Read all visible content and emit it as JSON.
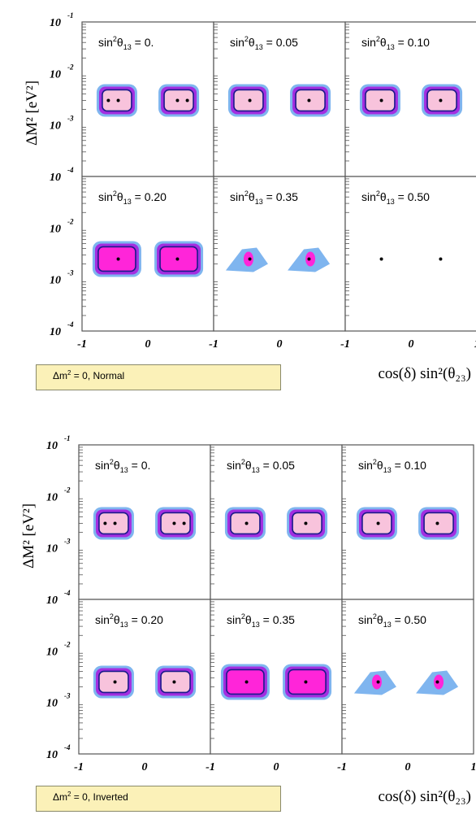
{
  "colors": {
    "frame": "#555555",
    "region_outer": "#7fb5ef",
    "region_mid": "#a32ee0",
    "region_core": "#ff25d9",
    "region_inner": "#f8c3dc",
    "contour": "#1a1a8a",
    "best_fit": "#000000",
    "legend_bg": "#fbf1b8"
  },
  "chart_data": [
    {
      "type": "contour",
      "legend": "Δm² = 0, Normal",
      "legend_parts": {
        "pre": "Δm",
        "sup": "2",
        "post": " = 0, Normal"
      },
      "xlabel": "cos(δ) sin²(θ₂₃)",
      "ylabel": "ΔM² [eV²]",
      "x_ticks": [
        "-1",
        "0",
        "-1",
        "0",
        "-1",
        "0",
        "1"
      ],
      "y_ticks": [
        "10",
        "10",
        "10",
        "10"
      ],
      "y_tick_exponents": [
        "-1",
        "-2",
        "-3",
        "-4"
      ],
      "x_range": [
        -1,
        1
      ],
      "y_range": [
        0.0001,
        0.1
      ],
      "y_scale": "log",
      "panels": [
        {
          "title_pre": "sin",
          "title_sup": "2",
          "title_mid": "θ",
          "title_sub": "13",
          "title_post": " = 0.",
          "sin2theta13": 0.0,
          "regions": "full",
          "best_fit_x": [
            -0.6,
            -0.45,
            0.45,
            0.6
          ],
          "best_fit_dm2": 0.003
        },
        {
          "title_pre": "sin",
          "title_sup": "2",
          "title_mid": "θ",
          "title_sub": "13",
          "title_post": " = 0.05",
          "sin2theta13": 0.05,
          "regions": "full",
          "best_fit_x": [
            -0.45,
            0.45
          ],
          "best_fit_dm2": 0.003
        },
        {
          "title_pre": "sin",
          "title_sup": "2",
          "title_mid": "θ",
          "title_sub": "13",
          "title_post": " = 0.10",
          "sin2theta13": 0.1,
          "regions": "full",
          "best_fit_x": [
            -0.45,
            0.45
          ],
          "best_fit_dm2": 0.003
        },
        {
          "title_pre": "sin",
          "title_sup": "2",
          "title_mid": "θ",
          "title_sub": "13",
          "title_post": " = 0.20",
          "sin2theta13": 0.2,
          "regions": "wide",
          "best_fit_x": [
            -0.45,
            0.45
          ],
          "best_fit_dm2": 0.0025
        },
        {
          "title_pre": "sin",
          "title_sup": "2",
          "title_mid": "θ",
          "title_sub": "13",
          "title_post": " = 0.35",
          "sin2theta13": 0.35,
          "regions": "narrow",
          "best_fit_x": [
            -0.45,
            0.45
          ],
          "best_fit_dm2": 0.0025
        },
        {
          "title_pre": "sin",
          "title_sup": "2",
          "title_mid": "θ",
          "title_sub": "13",
          "title_post": " = 0.50",
          "sin2theta13": 0.5,
          "regions": "none",
          "best_fit_x": [
            -0.45,
            0.45
          ],
          "best_fit_dm2": 0.0025
        }
      ]
    },
    {
      "type": "contour",
      "legend": "Δm² = 0, Inverted",
      "legend_parts": {
        "pre": "Δm",
        "sup": "2",
        "post": " = 0, Inverted"
      },
      "xlabel": "cos(δ) sin²(θ₂₃)",
      "ylabel": "ΔM² [eV²]",
      "x_ticks": [
        "-1",
        "0",
        "-1",
        "0",
        "-1",
        "0",
        "1"
      ],
      "y_ticks": [
        "10",
        "10",
        "10",
        "10"
      ],
      "y_tick_exponents": [
        "-1",
        "-2",
        "-3",
        "-4"
      ],
      "x_range": [
        -1,
        1
      ],
      "y_range": [
        0.0001,
        0.1
      ],
      "y_scale": "log",
      "panels": [
        {
          "title_pre": "sin",
          "title_sup": "2",
          "title_mid": "θ",
          "title_sub": "13",
          "title_post": " = 0.",
          "sin2theta13": 0.0,
          "regions": "full",
          "best_fit_x": [
            -0.6,
            -0.45,
            0.45,
            0.6
          ],
          "best_fit_dm2": 0.003
        },
        {
          "title_pre": "sin",
          "title_sup": "2",
          "title_mid": "θ",
          "title_sub": "13",
          "title_post": " = 0.05",
          "sin2theta13": 0.05,
          "regions": "full",
          "best_fit_x": [
            -0.45,
            0.45
          ],
          "best_fit_dm2": 0.003
        },
        {
          "title_pre": "sin",
          "title_sup": "2",
          "title_mid": "θ",
          "title_sub": "13",
          "title_post": " = 0.10",
          "sin2theta13": 0.1,
          "regions": "full",
          "best_fit_x": [
            -0.45,
            0.45
          ],
          "best_fit_dm2": 0.003
        },
        {
          "title_pre": "sin",
          "title_sup": "2",
          "title_mid": "θ",
          "title_sub": "13",
          "title_post": " = 0.20",
          "sin2theta13": 0.2,
          "regions": "full",
          "best_fit_x": [
            -0.45,
            0.45
          ],
          "best_fit_dm2": 0.0025
        },
        {
          "title_pre": "sin",
          "title_sup": "2",
          "title_mid": "θ",
          "title_sub": "13",
          "title_post": " = 0.35",
          "sin2theta13": 0.35,
          "regions": "wide",
          "best_fit_x": [
            -0.45,
            0.45
          ],
          "best_fit_dm2": 0.0025
        },
        {
          "title_pre": "sin",
          "title_sup": "2",
          "title_mid": "θ",
          "title_sub": "13",
          "title_post": " = 0.50",
          "sin2theta13": 0.5,
          "regions": "narrow",
          "best_fit_x": [
            -0.45,
            0.45
          ],
          "best_fit_dm2": 0.0025
        }
      ]
    }
  ]
}
